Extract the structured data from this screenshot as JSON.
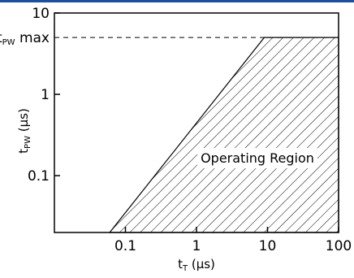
{
  "colors": {
    "accent_bar": "#1c4f9c",
    "line": "#000000",
    "hatch": "#000000",
    "background": "#ffffff"
  },
  "chart_data": {
    "type": "area",
    "x_scale": "log",
    "y_scale": "log",
    "xlim": [
      0.01,
      100
    ],
    "ylim": [
      0.02,
      10
    ],
    "grid": false,
    "x_ticks": [
      {
        "value": 0.1,
        "label": "0.1"
      },
      {
        "value": 1,
        "label": "1"
      },
      {
        "value": 10,
        "label": "10"
      },
      {
        "value": 100,
        "label": "100"
      }
    ],
    "y_ticks": [
      {
        "value": 0.1,
        "label": "0.1"
      },
      {
        "value": 1,
        "label": "1"
      },
      {
        "value": 10,
        "label": "10"
      }
    ],
    "xlabel": {
      "main": "t",
      "sub": "T",
      "rest": " (µs)"
    },
    "ylabel": {
      "main": "t",
      "sub": "PW",
      "rest": " (µs)"
    },
    "reference_line": {
      "y": 5,
      "label_main": "t",
      "label_sub": "PW",
      "label_rest": " max",
      "style": "dashed"
    },
    "region": {
      "label": "Operating Region",
      "boundary": [
        {
          "x": 0.06,
          "y": 0.02
        },
        {
          "x": 9,
          "y": 5
        },
        {
          "x": 100,
          "y": 5
        },
        {
          "x": 100,
          "y": 0.02
        }
      ]
    }
  }
}
